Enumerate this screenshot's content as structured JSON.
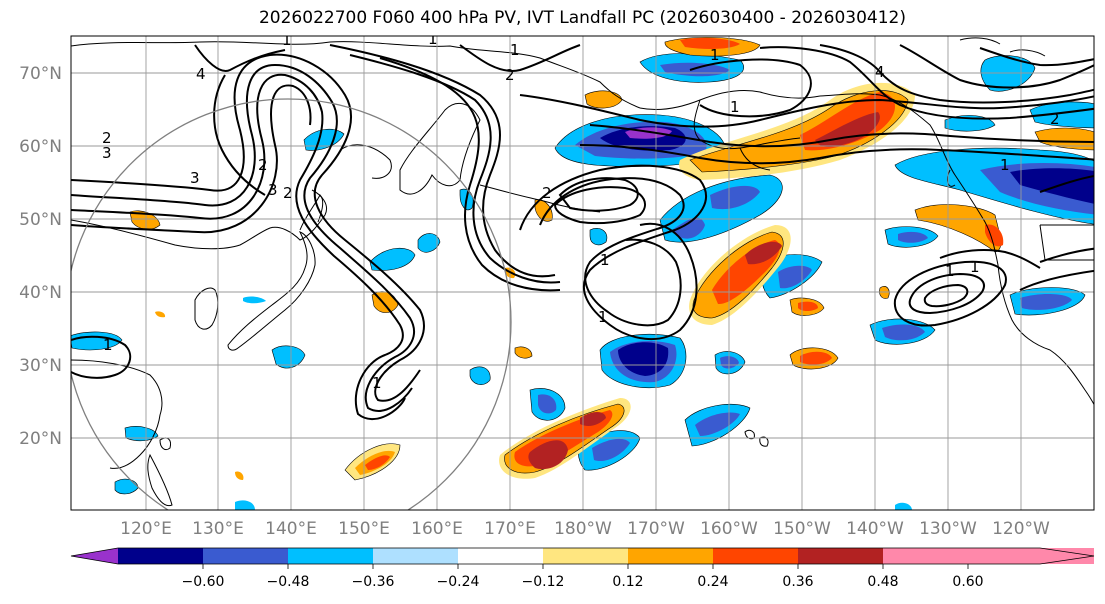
{
  "title": "2026022700 F060 400 hPa PV, IVT Landfall PC (2026030400 - 2026030412)",
  "lat_labels": [
    "70°N",
    "60°N",
    "50°N",
    "40°N",
    "30°N",
    "20°N"
  ],
  "lon_labels": [
    "120°E",
    "130°E",
    "140°E",
    "150°E",
    "160°E",
    "170°E",
    "180°W",
    "170°W",
    "160°W",
    "150°W",
    "140°W",
    "130°W",
    "120°W"
  ],
  "colorbar": {
    "ticks": [
      "−0.60",
      "−0.48",
      "−0.36",
      "−0.24",
      "−0.12",
      "0.12",
      "0.24",
      "0.36",
      "0.48",
      "0.60"
    ],
    "colors": [
      "#9932cc",
      "#00008b",
      "#3a5bd0",
      "#00bfff",
      "#aee0ff",
      "#ffffff",
      "#ffe680",
      "#ffa500",
      "#ff4500",
      "#b22222",
      "#ff88aa"
    ]
  },
  "contour_labels": [
    "1",
    "1",
    "2",
    "3",
    "4",
    "3",
    "2",
    "3",
    "2",
    "1",
    "1",
    "1",
    "2",
    "1",
    "1",
    "2",
    "1",
    "2",
    "1",
    "1",
    "4",
    "1",
    "1"
  ],
  "colors": {
    "land": "#000000",
    "grid": "#9a9a9a",
    "circle": "#808080"
  }
}
